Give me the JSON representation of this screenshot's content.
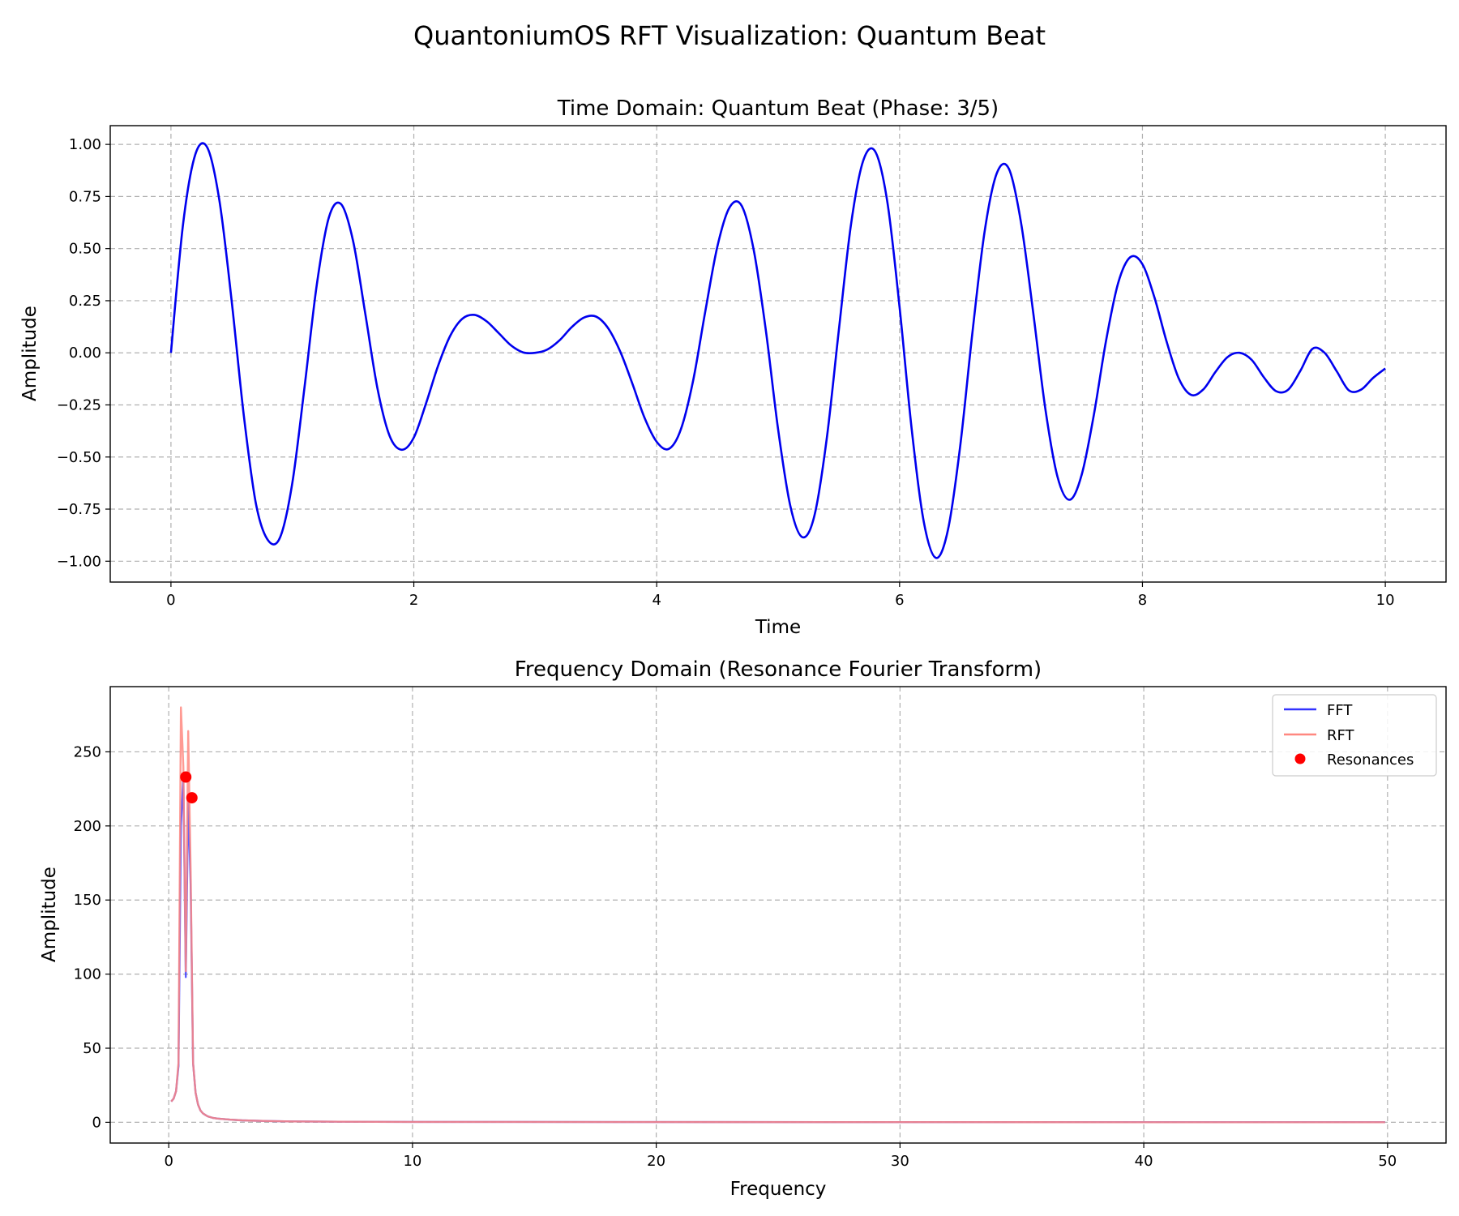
{
  "figure": {
    "suptitle": "QuantoniumOS RFT Visualization: Quantum Beat"
  },
  "chart_data": [
    {
      "type": "line",
      "title": "Time Domain: Quantum Beat (Phase: 3/5)",
      "xlabel": "Time",
      "ylabel": "Amplitude",
      "xlim": [
        -0.5,
        10.5
      ],
      "ylim": [
        -1.1,
        1.09
      ],
      "xticks": [
        0,
        2,
        4,
        6,
        8,
        10
      ],
      "yticks": [
        -1.0,
        -0.75,
        -0.5,
        -0.25,
        0.0,
        0.25,
        0.5,
        0.75,
        1.0
      ],
      "xtick_labels": [
        "0",
        "2",
        "4",
        "6",
        "8",
        "10"
      ],
      "ytick_labels": [
        "−1.00",
        "−0.75",
        "−0.50",
        "−0.25",
        "0.00",
        "0.25",
        "0.50",
        "0.75",
        "1.00"
      ],
      "grid": true,
      "series": [
        {
          "color": "#0000ee",
          "x": [
            0.0,
            0.1,
            0.2,
            0.3,
            0.4,
            0.5,
            0.6,
            0.7,
            0.8,
            0.9,
            1.0,
            1.1,
            1.2,
            1.3,
            1.4,
            1.5,
            1.6,
            1.7,
            1.8,
            1.9,
            2.0,
            2.1,
            2.2,
            2.3,
            2.4,
            2.5,
            2.6,
            2.7,
            2.8,
            2.9,
            3.0,
            3.1,
            3.2,
            3.3,
            3.4,
            3.5,
            3.6,
            3.7,
            3.8,
            3.9,
            4.0,
            4.1,
            4.2,
            4.3,
            4.4,
            4.5,
            4.6,
            4.7,
            4.8,
            4.9,
            5.0,
            5.1,
            5.2,
            5.3,
            5.4,
            5.5,
            5.6,
            5.7,
            5.8,
            5.9,
            6.0,
            6.1,
            6.2,
            6.3,
            6.4,
            6.5,
            6.6,
            6.7,
            6.8,
            6.9,
            7.0,
            7.1,
            7.2,
            7.3,
            7.4,
            7.5,
            7.6,
            7.7,
            7.8,
            7.9,
            8.0,
            8.1,
            8.2,
            8.3,
            8.4,
            8.5,
            8.6,
            8.7,
            8.8,
            8.9,
            9.0,
            9.1,
            9.2,
            9.3,
            9.4,
            9.5,
            9.6,
            9.7,
            9.8,
            9.9,
            10.0
          ],
          "y": [
            0.0,
            0.619,
            0.951,
            0.984,
            0.728,
            0.249,
            -0.301,
            -0.725,
            -0.9,
            -0.884,
            -0.623,
            -0.165,
            0.323,
            0.649,
            0.714,
            0.537,
            0.189,
            -0.169,
            -0.398,
            -0.465,
            -0.407,
            -0.244,
            -0.062,
            0.082,
            0.164,
            0.182,
            0.151,
            0.094,
            0.036,
            0.002,
            0.0,
            0.016,
            0.06,
            0.123,
            0.169,
            0.174,
            0.118,
            0.006,
            -0.148,
            -0.312,
            -0.427,
            -0.461,
            -0.366,
            -0.134,
            0.198,
            0.511,
            0.698,
            0.705,
            0.491,
            0.103,
            -0.368,
            -0.734,
            -0.885,
            -0.779,
            -0.414,
            0.109,
            0.616,
            0.921,
            0.965,
            0.722,
            0.22,
            -0.367,
            -0.813,
            -0.984,
            -0.846,
            -0.445,
            0.097,
            0.581,
            0.861,
            0.883,
            0.626,
            0.196,
            -0.267,
            -0.594,
            -0.705,
            -0.585,
            -0.298,
            0.057,
            0.335,
            0.459,
            0.425,
            0.264,
            0.052,
            -0.124,
            -0.202,
            -0.176,
            -0.093,
            -0.021,
            0.0,
            -0.034,
            -0.118,
            -0.184,
            -0.177,
            -0.087,
            0.019,
            0.0,
            -0.089,
            -0.18,
            -0.177,
            -0.12,
            -0.075
          ]
        }
      ]
    },
    {
      "type": "line",
      "title": "Frequency Domain (Resonance Fourier Transform)",
      "xlabel": "Frequency",
      "ylabel": "Amplitude",
      "xlim": [
        -2.4,
        52.4
      ],
      "ylim": [
        -14,
        294
      ],
      "xticks": [
        0,
        10,
        20,
        30,
        40,
        50
      ],
      "yticks": [
        0,
        50,
        100,
        150,
        200,
        250
      ],
      "xtick_labels": [
        "0",
        "10",
        "20",
        "30",
        "40",
        "50"
      ],
      "ytick_labels": [
        "0",
        "50",
        "100",
        "150",
        "200",
        "250"
      ],
      "grid": true,
      "legend": "top-right",
      "series": [
        {
          "name": "FFT",
          "color": "#3333ff",
          "x": [
            0.1,
            0.2,
            0.3,
            0.4,
            0.5,
            0.6,
            0.7,
            0.8,
            0.9,
            1.0,
            1.1,
            1.2,
            1.3,
            1.4,
            1.5,
            1.6,
            1.8,
            2.0,
            2.5,
            3.0,
            4.0,
            5.0,
            7.0,
            10.0,
            20.0,
            30.0,
            40.0,
            49.9
          ],
          "y": [
            14,
            16,
            21,
            38,
            200,
            233,
            98,
            219,
            160,
            40,
            20,
            12,
            8,
            6,
            5,
            4,
            3,
            2.5,
            1.8,
            1.3,
            0.9,
            0.6,
            0.4,
            0.3,
            0.15,
            0.1,
            0.07,
            0.05
          ]
        },
        {
          "name": "RFT",
          "color": "#ff8880",
          "x": [
            0.1,
            0.2,
            0.3,
            0.4,
            0.5,
            0.6,
            0.7,
            0.8,
            0.9,
            1.0,
            1.1,
            1.2,
            1.3,
            1.4,
            1.5,
            1.6,
            1.8,
            2.0,
            2.5,
            3.0,
            4.0,
            5.0,
            7.0,
            10.0,
            20.0,
            30.0,
            40.0,
            49.9
          ],
          "y": [
            14,
            16,
            21,
            40,
            280,
            240,
            102,
            264,
            170,
            40,
            20,
            12,
            8,
            6,
            5,
            4,
            3,
            2.5,
            1.8,
            1.3,
            0.9,
            0.6,
            0.4,
            0.3,
            0.15,
            0.1,
            0.07,
            0.05
          ]
        },
        {
          "name": "Resonances",
          "type": "scatter",
          "color": "#ff0000",
          "x": [
            0.7,
            0.95
          ],
          "y": [
            233,
            219
          ]
        }
      ]
    }
  ]
}
